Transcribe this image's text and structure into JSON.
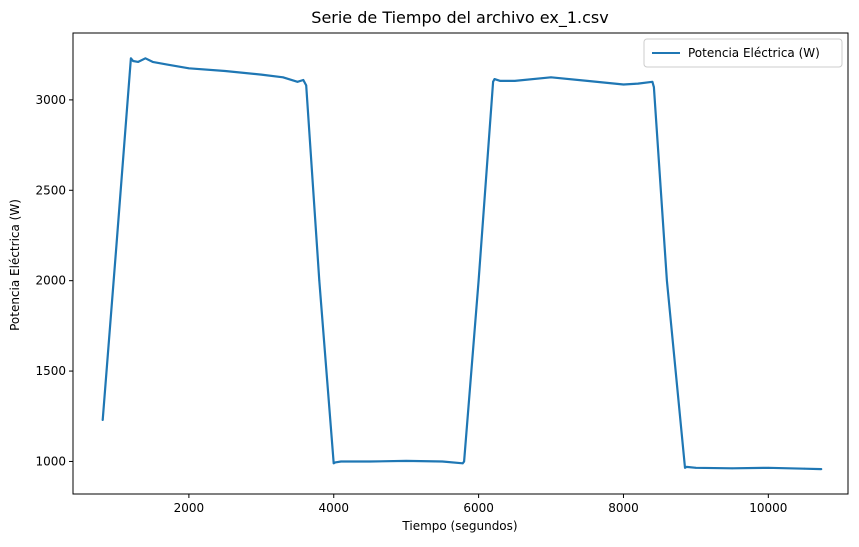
{
  "chart_data": {
    "type": "line",
    "title": "Serie de Tiempo del archivo ex_1.csv",
    "xlabel": "Tiempo (segundos)",
    "ylabel": "Potencia Eléctrica (W)",
    "xlim": [
      400,
      11100
    ],
    "ylim": [
      820,
      3370
    ],
    "xticks": [
      2000,
      4000,
      6000,
      8000,
      10000
    ],
    "yticks": [
      1000,
      1500,
      2000,
      2500,
      3000
    ],
    "grid": false,
    "legend_position": "top-right",
    "series": [
      {
        "name": "Potencia Eléctrica (W)",
        "color": "#1f77b4",
        "x": [
          810,
          1000,
          1200,
          1230,
          1300,
          1400,
          1500,
          1700,
          2000,
          2500,
          3000,
          3300,
          3500,
          3580,
          3620,
          3800,
          4000,
          4020,
          4100,
          4500,
          5000,
          5500,
          5780,
          5800,
          6000,
          6200,
          6220,
          6300,
          6500,
          7000,
          7500,
          8000,
          8200,
          8400,
          8420,
          8600,
          8850,
          8870,
          9000,
          9500,
          10000,
          10500,
          10730
        ],
        "y": [
          1230,
          2200,
          3230,
          3215,
          3210,
          3230,
          3210,
          3195,
          3175,
          3160,
          3140,
          3125,
          3100,
          3110,
          3080,
          2000,
          990,
          995,
          1000,
          1000,
          1003,
          1000,
          990,
          1000,
          2000,
          3100,
          3115,
          3105,
          3105,
          3125,
          3105,
          3085,
          3090,
          3100,
          3070,
          2000,
          965,
          970,
          965,
          962,
          965,
          960,
          958
        ]
      }
    ]
  }
}
